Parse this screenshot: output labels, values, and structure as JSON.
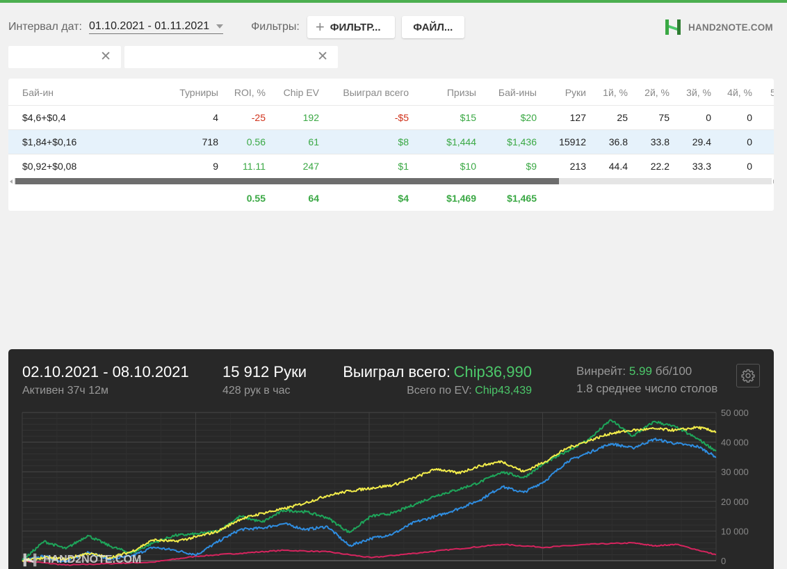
{
  "header": {
    "date_label": "Интервал дат:",
    "date_range": "01.10.2021 - 01.11.2021",
    "filters_label": "Фильтры:",
    "filter_button": "ФИЛЬТР...",
    "file_button": "ФАЙЛ...",
    "logo_text": "HAND2NOTE.COM",
    "logo_color": "#3aa844"
  },
  "search": {
    "left_value": "",
    "right_value": ""
  },
  "table": {
    "columns": [
      "Бай-ин",
      "Турниры",
      "ROI, %",
      "Chip EV",
      "Выиграл всего",
      "Призы",
      "Бай-ины",
      "Руки",
      "1й, %",
      "2й, %",
      "3й, %",
      "4й, %",
      "5"
    ],
    "rows": [
      {
        "buyin": "$4,6+$0,4",
        "tournaments": "4",
        "roi": "-25",
        "chip_ev": "192",
        "won": "-$5",
        "prizes": "$15",
        "buyins": "$20",
        "hands": "127",
        "p1": "25",
        "p2": "75",
        "p3": "0",
        "p4": "0",
        "selected": false
      },
      {
        "buyin": "$1,84+$0,16",
        "tournaments": "718",
        "roi": "0.56",
        "chip_ev": "61",
        "won": "$8",
        "prizes": "$1,444",
        "buyins": "$1,436",
        "hands": "15912",
        "p1": "36.8",
        "p2": "33.8",
        "p3": "29.4",
        "p4": "0",
        "selected": true
      },
      {
        "buyin": "$0,92+$0,08",
        "tournaments": "9",
        "roi": "11.11",
        "chip_ev": "247",
        "won": "$1",
        "prizes": "$10",
        "buyins": "$9",
        "hands": "213",
        "p1": "44.4",
        "p2": "22.2",
        "p3": "33.3",
        "p4": "0",
        "selected": false
      }
    ],
    "totals": {
      "roi": "0.55",
      "chip_ev": "64",
      "won": "$4",
      "prizes": "$1,469",
      "buyins": "$1,465"
    },
    "scroll_visible_fraction": 0.72
  },
  "summary": {
    "period": "02.10.2021 - 08.10.2021",
    "active": "Активен 37ч 12м",
    "hands": "15 912 Руки",
    "hands_per_hour": "428 рук в час",
    "won_label": "Выиграл всего:",
    "won_value": "Chip36,990",
    "ev_label": "Всего по EV:",
    "ev_value": "Chip43,439",
    "winrate_label": "Винрейт:",
    "winrate_value": "5.99",
    "winrate_unit": "бб/100",
    "tables": "1.8 среднее число столов",
    "watermark": "HAND2NOTE.COM"
  },
  "chart_data": {
    "type": "line",
    "title": "",
    "xlabel": "",
    "ylabel": "",
    "y_ticks": [
      "50 000",
      "40 000",
      "30 000",
      "20 000",
      "10 000",
      "0"
    ],
    "ylim": [
      0,
      50000
    ],
    "xlim": [
      0,
      15912
    ],
    "grid": true,
    "colors": {
      "green": "#1ea55a",
      "yellow": "#f2ec4a",
      "blue": "#2f8de0",
      "pink": "#d6245e"
    },
    "series": [
      {
        "color_key": "green",
        "x": [
          0,
          500,
          1000,
          1500,
          2000,
          2500,
          3000,
          3500,
          4000,
          4500,
          5000,
          5500,
          6000,
          6500,
          7000,
          7500,
          8000,
          8500,
          9000,
          9500,
          10000,
          10500,
          11000,
          11500,
          12000,
          12500,
          13000,
          13500,
          14000,
          14500,
          15000,
          15500,
          15912
        ],
        "y": [
          0,
          6500,
          4000,
          8500,
          5000,
          2500,
          6000,
          8500,
          9000,
          10000,
          15000,
          13000,
          17000,
          16500,
          14500,
          9500,
          15000,
          16000,
          19000,
          22000,
          24000,
          26500,
          30000,
          28000,
          33000,
          37000,
          41000,
          47500,
          42000,
          47000,
          45000,
          41000,
          37000
        ]
      },
      {
        "color_key": "yellow",
        "x": [
          0,
          500,
          1000,
          1500,
          2000,
          2500,
          3000,
          3500,
          4000,
          4500,
          5000,
          5500,
          6000,
          6500,
          7000,
          7500,
          8000,
          8500,
          9000,
          9500,
          10000,
          10500,
          11000,
          11500,
          12000,
          12500,
          13000,
          13500,
          14000,
          14500,
          15000,
          15500,
          15912
        ],
        "y": [
          0,
          1000,
          500,
          2500,
          1000,
          3000,
          7000,
          6500,
          8000,
          10000,
          14000,
          16000,
          17500,
          19500,
          22000,
          23500,
          24500,
          25500,
          28000,
          31000,
          29500,
          32000,
          33500,
          30000,
          33500,
          38000,
          40500,
          43000,
          44000,
          44500,
          44000,
          45000,
          43500
        ]
      },
      {
        "color_key": "blue",
        "x": [
          0,
          500,
          1000,
          1500,
          2000,
          2500,
          3000,
          3500,
          4000,
          4500,
          5000,
          5500,
          6000,
          6500,
          7000,
          7500,
          8000,
          8500,
          9000,
          9500,
          10000,
          10500,
          11000,
          11500,
          12000,
          12500,
          13000,
          13500,
          14000,
          14500,
          15000,
          15500,
          15912
        ],
        "y": [
          0,
          1500,
          -500,
          3000,
          500,
          1500,
          4500,
          3500,
          2000,
          6500,
          10500,
          11000,
          12500,
          10500,
          11500,
          5000,
          7500,
          9000,
          13000,
          15000,
          17500,
          20500,
          25000,
          23000,
          27000,
          33500,
          36500,
          39500,
          38000,
          41000,
          39500,
          38500,
          35000
        ]
      },
      {
        "color_key": "pink",
        "x": [
          0,
          1000,
          2000,
          3000,
          4000,
          5000,
          6000,
          7000,
          8000,
          9000,
          10000,
          11000,
          12000,
          13000,
          14000,
          14500,
          15000,
          15912
        ],
        "y": [
          0,
          -1500,
          -1000,
          -500,
          1500,
          2500,
          3500,
          3000,
          1000,
          2500,
          4000,
          5500,
          4500,
          5500,
          6000,
          5000,
          5500,
          2000
        ]
      }
    ]
  }
}
